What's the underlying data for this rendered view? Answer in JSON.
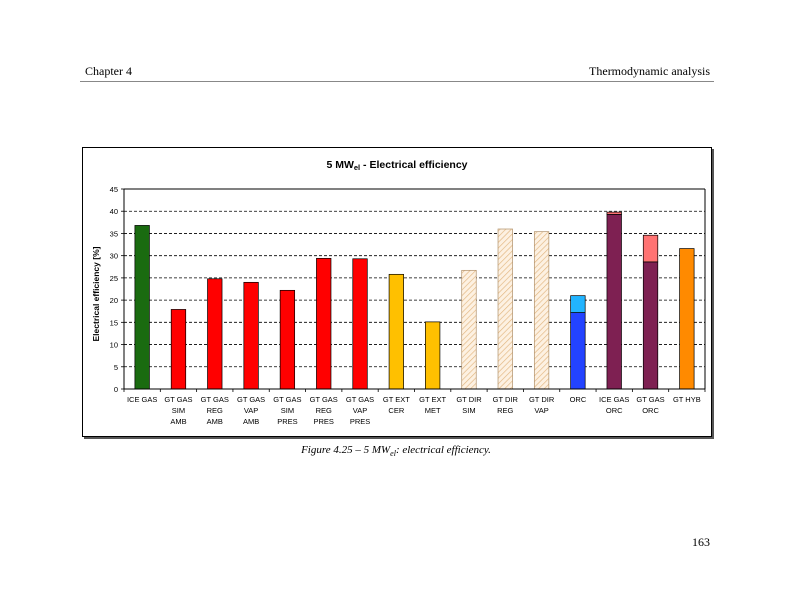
{
  "header": {
    "chapter": "Chapter 4",
    "section": "Thermodynamic analysis"
  },
  "caption": {
    "main": "Figure 4.25 – 5 MW",
    "sub": "el",
    "tail": ": electrical efficiency."
  },
  "page_number": "163",
  "chart_data": {
    "type": "bar",
    "title": {
      "main": "5 MW",
      "sub": "el",
      "tail": " - Electrical efficiency"
    },
    "ylabel": "Electrical efficiency [%]",
    "xlabel": "",
    "ylim": [
      0,
      45
    ],
    "yticks": [
      0,
      5,
      10,
      15,
      20,
      25,
      30,
      35,
      40,
      45
    ],
    "grid": "horizontal dashed",
    "categories": [
      [
        "ICE GAS"
      ],
      [
        "GT GAS",
        "SIM",
        "AMB"
      ],
      [
        "GT GAS",
        "REG",
        "AMB"
      ],
      [
        "GT GAS",
        "VAP",
        "AMB"
      ],
      [
        "GT GAS",
        "SIM",
        "PRES"
      ],
      [
        "GT GAS",
        "REG",
        "PRES"
      ],
      [
        "GT GAS",
        "VAP",
        "PRES"
      ],
      [
        "GT EXT",
        "CER"
      ],
      [
        "GT EXT",
        "MET"
      ],
      [
        "GT DIR",
        "SIM"
      ],
      [
        "GT DIR",
        "REG"
      ],
      [
        "GT DIR",
        "VAP"
      ],
      [
        "ORC"
      ],
      [
        "ICE GAS",
        "ORC"
      ],
      [
        "GT GAS",
        "ORC"
      ],
      [
        "GT HYB"
      ]
    ],
    "bars": [
      {
        "segments": [
          {
            "value": 36.8,
            "color": "#1a6b10"
          }
        ]
      },
      {
        "segments": [
          {
            "value": 17.9,
            "color": "#ff0000"
          }
        ]
      },
      {
        "segments": [
          {
            "value": 24.8,
            "color": "#ff0000"
          }
        ]
      },
      {
        "segments": [
          {
            "value": 24.0,
            "color": "#ff0000"
          }
        ]
      },
      {
        "segments": [
          {
            "value": 22.2,
            "color": "#ff0000"
          }
        ]
      },
      {
        "segments": [
          {
            "value": 29.4,
            "color": "#ff0000"
          }
        ]
      },
      {
        "segments": [
          {
            "value": 29.3,
            "color": "#ff0000"
          }
        ]
      },
      {
        "segments": [
          {
            "value": 25.8,
            "color": "#ffc000"
          }
        ]
      },
      {
        "segments": [
          {
            "value": 15.1,
            "color": "#ffc000"
          }
        ]
      },
      {
        "segments": [
          {
            "value": 26.7,
            "color": "#f3d2a8",
            "pattern": "hatch"
          }
        ]
      },
      {
        "segments": [
          {
            "value": 36.0,
            "color": "#f3d2a8",
            "pattern": "hatch"
          }
        ]
      },
      {
        "segments": [
          {
            "value": 35.4,
            "color": "#f3d2a8",
            "pattern": "hatch"
          }
        ]
      },
      {
        "segments": [
          {
            "value": 17.2,
            "color": "#2343ff"
          },
          {
            "value": 3.8,
            "color": "#22b4ff"
          }
        ]
      },
      {
        "segments": [
          {
            "value": 39.3,
            "color": "#7e2052"
          },
          {
            "value": 0.5,
            "color": "#ff7373"
          }
        ]
      },
      {
        "segments": [
          {
            "value": 28.6,
            "color": "#7e2052"
          },
          {
            "value": 6.0,
            "color": "#ff7373"
          }
        ]
      },
      {
        "segments": [
          {
            "value": 31.6,
            "color": "#ff8a00"
          }
        ]
      }
    ]
  }
}
